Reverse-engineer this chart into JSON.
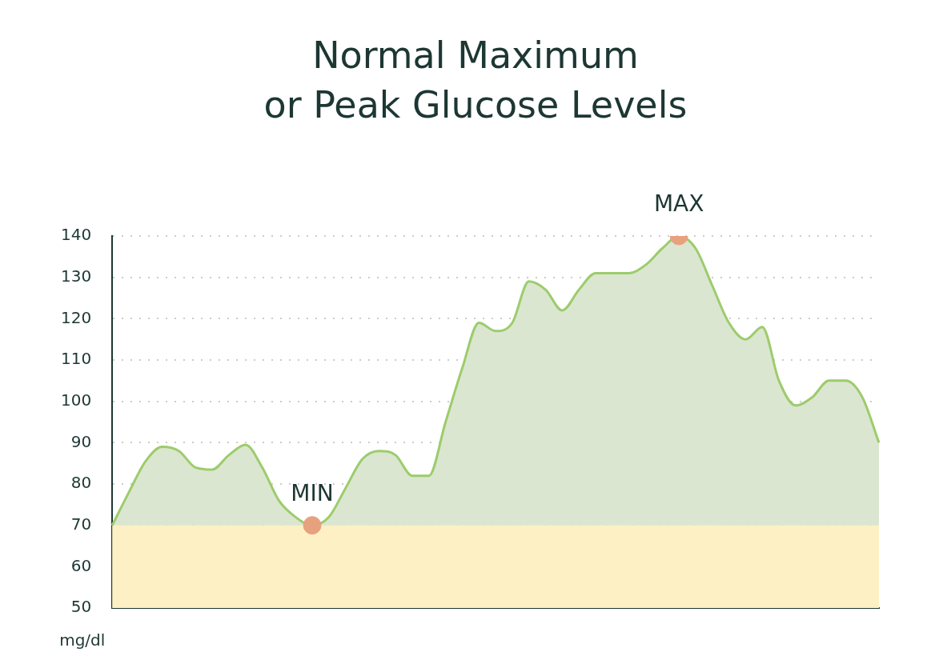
{
  "chart_data": {
    "type": "area",
    "title": "Normal Maximum\nor Peak Glucose Levels",
    "ylabel": "mg/dl",
    "categories": [
      null,
      null,
      null,
      null,
      null,
      null,
      null,
      null,
      null,
      null,
      null,
      null,
      null,
      null,
      null,
      null,
      null,
      null,
      null,
      null,
      null,
      null,
      null,
      null,
      null,
      null,
      null,
      null,
      null,
      null,
      null,
      null,
      null,
      null,
      null,
      null,
      null,
      null,
      null,
      null,
      null,
      null,
      null,
      null,
      null,
      null,
      null
    ],
    "series": [
      {
        "type": "area",
        "color": "#9ccc6c",
        "marker": "none",
        "values": [
          70,
          78,
          85.5,
          89,
          88,
          84,
          83.5,
          87,
          89.5,
          84,
          76,
          72,
          70,
          72,
          79,
          86,
          88,
          87,
          82,
          82,
          95,
          108,
          119,
          117,
          119,
          129,
          127,
          122,
          127,
          131,
          131,
          131,
          133,
          137,
          140,
          137,
          128,
          119,
          115,
          118,
          105,
          99,
          101,
          105,
          105,
          101,
          90
        ]
      },
      {
        "type": "scatter",
        "color": "#e8a17f",
        "marker": "circle",
        "values": [
          null,
          null,
          null,
          null,
          null,
          null,
          null,
          null,
          null,
          null,
          null,
          null,
          70,
          null,
          null,
          null,
          null,
          null,
          null,
          null,
          null,
          null,
          null,
          null,
          null,
          null,
          null,
          null,
          null,
          null,
          null,
          null,
          null,
          null,
          140,
          null,
          null,
          null,
          null,
          null,
          null,
          null,
          null,
          null,
          null,
          null,
          null
        ],
        "value_labels": [
          null,
          null,
          null,
          null,
          null,
          null,
          null,
          null,
          null,
          null,
          null,
          null,
          "MIN",
          null,
          null,
          null,
          null,
          null,
          null,
          null,
          null,
          null,
          null,
          null,
          null,
          null,
          null,
          null,
          null,
          null,
          null,
          null,
          null,
          null,
          "MAX",
          null,
          null,
          null,
          null,
          null,
          null,
          null,
          null,
          null,
          null,
          null,
          null
        ]
      }
    ],
    "ylim": [
      50,
      140
    ],
    "yticks": [
      50,
      60,
      70,
      80,
      90,
      100,
      110,
      120,
      130,
      140
    ],
    "bands": [
      {
        "axis": "y",
        "from": 50,
        "to": 70,
        "color": "#fdf0c4"
      }
    ],
    "grid": "y",
    "legend": false,
    "tick_labels": "y"
  }
}
